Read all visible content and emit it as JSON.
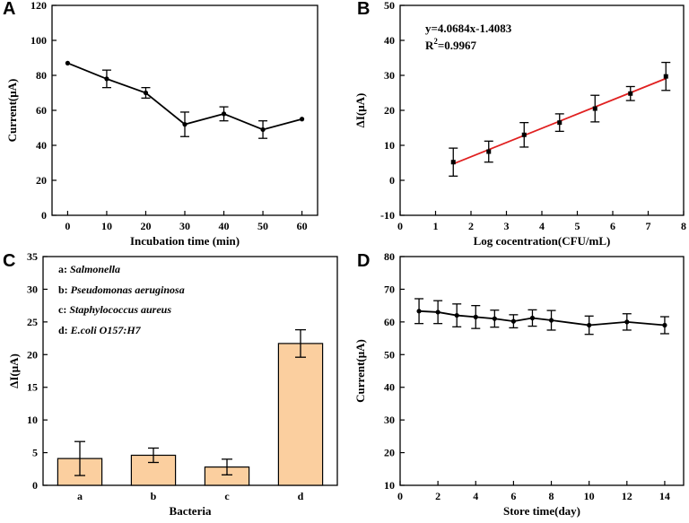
{
  "chart_data": [
    {
      "panel": "A",
      "type": "line",
      "xlabel": "Incubation time (min)",
      "ylabel": "Current(μA)",
      "xlim": [
        -4,
        64
      ],
      "ylim": [
        0,
        120
      ],
      "xticks": [
        0,
        10,
        20,
        30,
        40,
        50,
        60
      ],
      "yticks": [
        0,
        20,
        40,
        60,
        80,
        100,
        120
      ],
      "x": [
        0,
        10,
        20,
        30,
        40,
        50,
        60
      ],
      "y": [
        87,
        78,
        70,
        52,
        58,
        49,
        55
      ],
      "err": [
        0,
        5,
        3,
        7,
        4,
        5,
        0
      ],
      "color": "#000000"
    },
    {
      "panel": "B",
      "type": "scatter",
      "xlabel": "Log cocentration(CFU/mL)",
      "ylabel": "ΔI(μA)",
      "xlim": [
        0,
        8
      ],
      "ylim": [
        -10,
        50
      ],
      "xticks": [
        0,
        1,
        2,
        3,
        4,
        5,
        6,
        7,
        8
      ],
      "yticks": [
        -10,
        0,
        10,
        20,
        30,
        40,
        50
      ],
      "x": [
        1.5,
        2.5,
        3.5,
        4.5,
        5.5,
        6.5,
        7.5
      ],
      "y": [
        5.2,
        8.2,
        13.0,
        16.5,
        20.5,
        24.8,
        29.7
      ],
      "err": [
        4.0,
        3.0,
        3.5,
        2.5,
        3.8,
        2.0,
        4.0
      ],
      "fit": {
        "slope": 4.0684,
        "intercept": -1.4083,
        "x_range": [
          1.5,
          7.5
        ],
        "color": "#e02020"
      },
      "equation": "y=4.0684x-1.4083",
      "r2_prefix": "R",
      "r2_sup": "2",
      "r2_value": "=0.9967",
      "color": "#000000"
    },
    {
      "panel": "C",
      "type": "bar",
      "xlabel": "Bacteria",
      "ylabel": "ΔI(μA)",
      "ylim": [
        0,
        35
      ],
      "yticks": [
        0,
        5,
        10,
        15,
        20,
        25,
        30,
        35
      ],
      "categories": [
        "a",
        "b",
        "c",
        "d"
      ],
      "values": [
        4.1,
        4.6,
        2.8,
        21.7
      ],
      "err": [
        2.6,
        1.1,
        1.2,
        2.1
      ],
      "bar_color": "#fbcf9f",
      "legend": [
        {
          "prefix": "a: ",
          "name": "Salmonella"
        },
        {
          "prefix": "b: ",
          "name": "Pseudomonas aeruginosa"
        },
        {
          "prefix": "c: ",
          "name": "Staphylococcus aureus"
        },
        {
          "prefix": "d: ",
          "name": "E.coli O157:H7"
        }
      ]
    },
    {
      "panel": "D",
      "type": "line",
      "xlabel": "Store time(day)",
      "ylabel": "Current(μA)",
      "xlim": [
        0,
        15
      ],
      "ylim": [
        10,
        80
      ],
      "xticks": [
        0,
        2,
        4,
        6,
        8,
        10,
        12,
        14
      ],
      "yticks": [
        10,
        20,
        30,
        40,
        50,
        60,
        70,
        80
      ],
      "x": [
        1,
        2,
        3,
        4,
        5,
        6,
        7,
        8,
        10,
        12,
        14
      ],
      "y": [
        63.3,
        63.0,
        62.0,
        61.5,
        61.0,
        60.2,
        61.2,
        60.5,
        59.0,
        60.0,
        59.0
      ],
      "err": [
        3.8,
        3.5,
        3.5,
        3.5,
        2.6,
        2.0,
        2.5,
        3.0,
        2.8,
        2.5,
        2.6
      ],
      "color": "#000000"
    }
  ]
}
